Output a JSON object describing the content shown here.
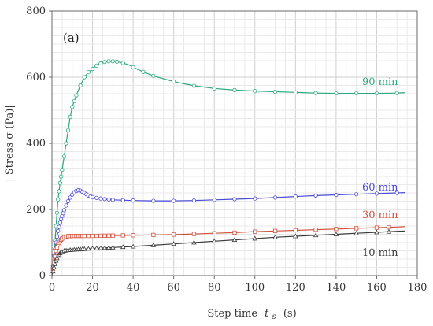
{
  "chart_data": {
    "type": "line",
    "panel_label": "(a)",
    "xlabel": "Step time",
    "xlabel_var": "t",
    "xlabel_sub": "s",
    "xlabel_unit": "(s)",
    "ylabel": "| Stress σ (Pa)|",
    "xlim": [
      0,
      180
    ],
    "ylim": [
      0,
      800
    ],
    "x_ticks": [
      "0",
      "20",
      "40",
      "60",
      "80",
      "100",
      "120",
      "140",
      "160",
      "180"
    ],
    "y_ticks": [
      "0",
      "200",
      "400",
      "600",
      "800"
    ],
    "grid": true,
    "series": [
      {
        "name": "90 min",
        "color": "#2ca87f",
        "marker": "circle",
        "x": [
          0,
          1,
          2,
          3,
          4,
          5,
          6,
          7,
          8,
          9,
          10,
          12,
          14,
          16,
          18,
          20,
          22,
          25,
          28,
          30,
          32,
          35,
          38,
          40,
          45,
          50,
          55,
          60,
          65,
          70,
          80,
          90,
          100,
          110,
          120,
          130,
          140,
          150,
          160,
          170,
          174
        ],
        "y": [
          0,
          60,
          150,
          230,
          280,
          320,
          360,
          400,
          440,
          480,
          510,
          545,
          575,
          600,
          615,
          625,
          635,
          645,
          648,
          648,
          647,
          643,
          637,
          630,
          616,
          604,
          595,
          587,
          580,
          574,
          566,
          561,
          558,
          556,
          554,
          552,
          551,
          551,
          551,
          552,
          553
        ],
        "marker_x": [
          0.5,
          1,
          1.5,
          2,
          2.5,
          3,
          3.5,
          4,
          4.5,
          5,
          6,
          7,
          8,
          9,
          10,
          11,
          12,
          14,
          16,
          18,
          20,
          22,
          24,
          26,
          28,
          30,
          32,
          35,
          40,
          45,
          50,
          60,
          70,
          80,
          90,
          100,
          110,
          120,
          130,
          140,
          150,
          160,
          170
        ]
      },
      {
        "name": "60 min",
        "color": "#4a4ad8",
        "marker": "circle",
        "x": [
          0,
          1,
          2,
          3,
          4,
          5,
          6,
          7,
          8,
          9,
          10,
          11,
          12,
          13,
          14,
          16,
          18,
          20,
          25,
          30,
          40,
          50,
          60,
          70,
          80,
          90,
          100,
          110,
          120,
          130,
          140,
          150,
          160,
          170,
          174
        ],
        "y": [
          0,
          60,
          100,
          135,
          160,
          180,
          198,
          212,
          225,
          236,
          245,
          252,
          256,
          258,
          257,
          250,
          242,
          237,
          232,
          229,
          227,
          226,
          226,
          227,
          229,
          231,
          233,
          236,
          239,
          242,
          244,
          246,
          248,
          250,
          251
        ],
        "marker_x": [
          0.5,
          1,
          1.5,
          2,
          2.5,
          3,
          3.5,
          4,
          4.5,
          5,
          5.5,
          6,
          7,
          8,
          9,
          10,
          11,
          12,
          13,
          14,
          15,
          16,
          17,
          18,
          19,
          20,
          22,
          24,
          26,
          28,
          30,
          35,
          40,
          50,
          60,
          70,
          80,
          90,
          100,
          110,
          120,
          130,
          140,
          150,
          160,
          170
        ]
      },
      {
        "name": "30 min",
        "color": "#d0533f",
        "marker": "square",
        "x": [
          0,
          1,
          2,
          3,
          4,
          5,
          6,
          8,
          10,
          12,
          15,
          20,
          30,
          40,
          50,
          60,
          70,
          80,
          90,
          100,
          110,
          120,
          130,
          140,
          150,
          160,
          170,
          174
        ],
        "y": [
          0,
          40,
          75,
          95,
          105,
          112,
          116,
          119,
          120,
          120,
          120,
          120,
          121,
          122,
          123,
          124,
          126,
          128,
          130,
          133,
          135,
          137,
          139,
          141,
          143,
          145,
          147,
          148
        ],
        "marker_x": [
          0.5,
          1,
          1.5,
          2,
          2.5,
          3,
          3.5,
          4,
          4.5,
          5,
          6,
          7,
          8,
          9,
          10,
          11,
          12,
          13,
          14,
          15,
          16,
          18,
          20,
          22,
          24,
          26,
          28,
          30,
          35,
          40,
          50,
          60,
          70,
          80,
          90,
          100,
          110,
          120,
          130,
          140,
          150,
          160,
          166
        ]
      },
      {
        "name": "10 min",
        "color": "#3c3c3c",
        "marker": "triangle",
        "x": [
          0,
          1,
          2,
          3,
          4,
          5,
          6,
          7,
          8,
          10,
          12,
          15,
          20,
          30,
          40,
          50,
          60,
          70,
          80,
          90,
          100,
          110,
          120,
          130,
          140,
          150,
          160,
          170,
          174
        ],
        "y": [
          0,
          25,
          45,
          60,
          68,
          72,
          75,
          76,
          77,
          78,
          79,
          80,
          82,
          85,
          88,
          92,
          96,
          100,
          104,
          108,
          112,
          116,
          119,
          122,
          125,
          128,
          131,
          134,
          135
        ],
        "marker_x": [
          0.5,
          1,
          1.5,
          2,
          2.5,
          3,
          3.5,
          4,
          4.5,
          5,
          6,
          7,
          8,
          9,
          10,
          11,
          12,
          13,
          14,
          15,
          16,
          18,
          20,
          22,
          24,
          26,
          28,
          30,
          35,
          40,
          50,
          60,
          70,
          80,
          90,
          100,
          110,
          120,
          130,
          140,
          150,
          160,
          166
        ]
      }
    ]
  }
}
